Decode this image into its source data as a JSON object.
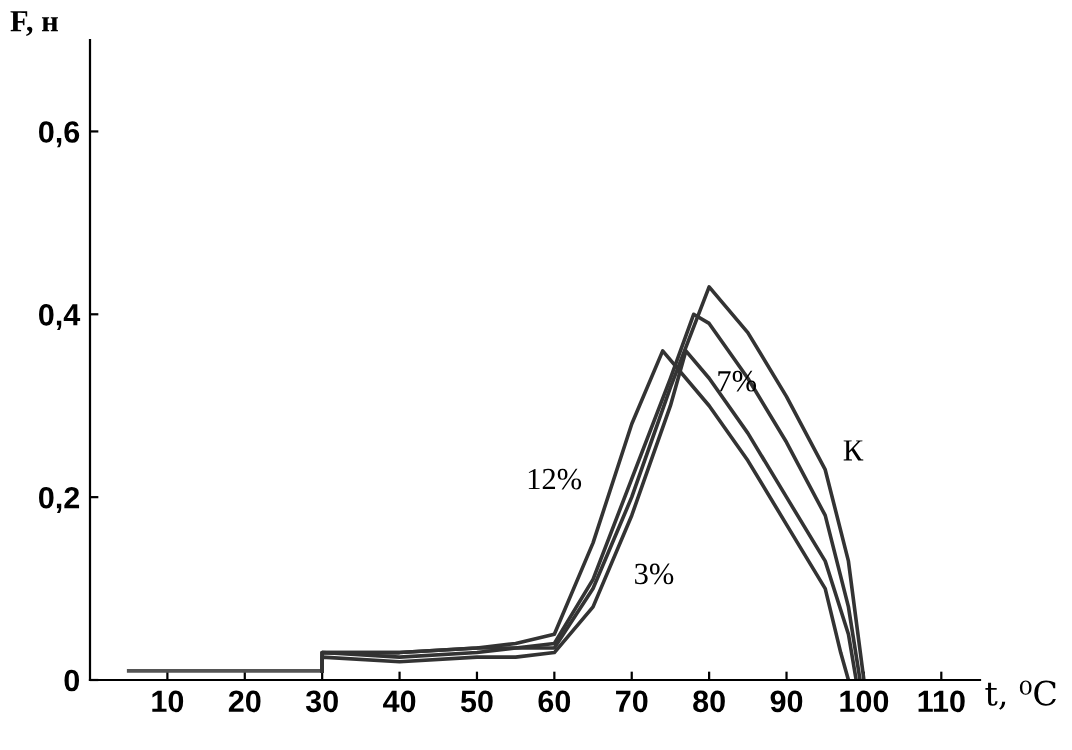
{
  "chart_data": {
    "type": "line",
    "xlabel": "t, ⁰C",
    "ylabel": "F, н",
    "xlim": [
      0,
      115
    ],
    "ylim": [
      0,
      0.7
    ],
    "xticks": [
      10,
      20,
      30,
      40,
      50,
      60,
      70,
      80,
      90,
      100,
      110
    ],
    "yticks": [
      {
        "value": 0,
        "label": "0"
      },
      {
        "value": 0.2,
        "label": "0,2"
      },
      {
        "value": 0.4,
        "label": "0,4"
      },
      {
        "value": 0.6,
        "label": "0,6"
      }
    ],
    "grid": false,
    "legend": false,
    "marker": "none",
    "line_style": "solid",
    "series": [
      {
        "color": "#555555",
        "x": [
          5,
          30
        ],
        "values": [
          0.01,
          0.01
        ]
      },
      {
        "color": "#333333",
        "x": [
          30,
          30,
          40,
          50,
          55,
          60,
          65,
          70,
          74,
          80,
          85,
          90,
          95,
          97,
          98
        ],
        "values": [
          0.01,
          0.03,
          0.03,
          0.035,
          0.04,
          0.05,
          0.15,
          0.28,
          0.36,
          0.3,
          0.24,
          0.17,
          0.1,
          0.03,
          0
        ]
      },
      {
        "color": "#333333",
        "x": [
          30,
          30,
          40,
          50,
          55,
          60,
          65,
          70,
          75,
          77,
          80,
          85,
          90,
          95,
          98,
          99
        ],
        "values": [
          0.01,
          0.025,
          0.02,
          0.025,
          0.025,
          0.03,
          0.08,
          0.18,
          0.3,
          0.36,
          0.33,
          0.27,
          0.2,
          0.13,
          0.05,
          0
        ]
      },
      {
        "color": "#333333",
        "x": [
          30,
          30,
          40,
          50,
          55,
          60,
          65,
          70,
          75,
          78,
          80,
          85,
          90,
          95,
          98,
          99.5
        ],
        "values": [
          0.01,
          0.03,
          0.025,
          0.03,
          0.035,
          0.04,
          0.11,
          0.22,
          0.33,
          0.4,
          0.39,
          0.33,
          0.26,
          0.18,
          0.08,
          0
        ]
      },
      {
        "color": "#333333",
        "x": [
          30,
          30,
          40,
          50,
          55,
          60,
          65,
          70,
          75,
          80,
          85,
          90,
          95,
          98,
          100
        ],
        "values": [
          0.01,
          0.03,
          0.03,
          0.035,
          0.035,
          0.035,
          0.1,
          0.2,
          0.32,
          0.43,
          0.38,
          0.31,
          0.23,
          0.13,
          0
        ]
      }
    ],
    "annotations": [
      {
        "text": "12%",
        "x": 65,
        "y": 0.15
      },
      {
        "text": "3%",
        "x": 70,
        "y": 0.18
      },
      {
        "text": "7%",
        "x": 85,
        "y": 0.33
      },
      {
        "text": "К",
        "x": 95,
        "y": 0.23
      }
    ]
  }
}
